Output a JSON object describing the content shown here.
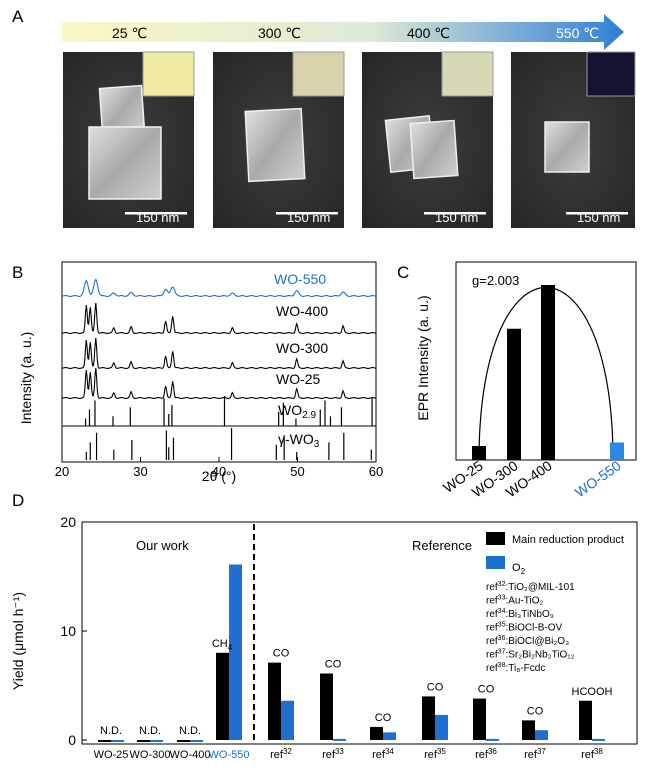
{
  "colors": {
    "black": "#000000",
    "blue": "#1f6fd1",
    "light_blue": "#2a88e6",
    "sem_bg": "#333333",
    "gradient_start": "#fbf7c7",
    "gradient_end": "#2f7fd6"
  },
  "panel_a": {
    "label": "A",
    "temperatures": [
      "25 ℃",
      "300 ℃",
      "400 ℃",
      "550 ℃"
    ],
    "scale_bar": "150 nm",
    "inset_colors": [
      "#efe9a2",
      "#d8d3ad",
      "#d7d8b6",
      "#141430"
    ]
  },
  "panel_b": {
    "label": "B",
    "ylabel": "Intensity (a. u.)",
    "xlabel": "2θ (°)",
    "xticks": [
      "20",
      "30",
      "40",
      "50",
      "60"
    ],
    "trace_labels": [
      "WO-550",
      "WO-400",
      "WO-300",
      "WO-25"
    ],
    "reference_labels": [
      "WO2.9",
      "γ-WO3"
    ]
  },
  "panel_c": {
    "label": "C",
    "ylabel": "EPR Intensity (a. u.)",
    "annotation": "g=2.003",
    "categories": [
      "WO-25",
      "WO-300",
      "WO-400",
      "WO-550"
    ],
    "values": [
      0.08,
      0.75,
      1.0,
      0.1
    ]
  },
  "panel_d": {
    "label": "D",
    "ylabel": "Yield (μmol h⁻¹)",
    "yticks": [
      "0",
      "10",
      "20"
    ],
    "section_left": "Our work",
    "section_right": "Reference",
    "legend": [
      "Main reduction product",
      "O2"
    ],
    "refs": [
      {
        "sup": "32",
        "text": ":TiO₂@MIL-101"
      },
      {
        "sup": "33",
        "text": ":Au-TiO₂"
      },
      {
        "sup": "34",
        "text": ":Bi₃TiNbO₉"
      },
      {
        "sup": "35",
        "text": ":BiOCl-B-OV"
      },
      {
        "sup": "36",
        "text": ":BiOCl@Bi₂O₃"
      },
      {
        "sup": "37",
        "text": ":Sr₂Bi₂Nb₂TiO₁₂"
      },
      {
        "sup": "38",
        "text": ":Ti₈-Fcdc"
      }
    ]
  },
  "chart_data": [
    {
      "type": "line",
      "panel": "B",
      "xlabel": "2θ (°)",
      "ylabel": "Intensity (a. u.)",
      "xlim": [
        20,
        60
      ],
      "series": [
        {
          "name": "WO-550",
          "peaks": [
            23.1,
            24.3,
            26.6,
            28.8,
            33.2,
            34.1,
            41.7,
            49.9,
            55.8
          ]
        },
        {
          "name": "WO-400",
          "peaks": [
            23.1,
            23.6,
            24.3,
            26.6,
            28.8,
            33.2,
            34.1,
            41.7,
            49.9,
            55.8
          ]
        },
        {
          "name": "WO-300",
          "peaks": [
            23.1,
            23.6,
            24.3,
            26.6,
            28.8,
            33.2,
            34.1,
            41.7,
            49.9,
            55.8
          ]
        },
        {
          "name": "WO-25",
          "peaks": [
            23.1,
            23.6,
            24.3,
            26.6,
            28.8,
            33.2,
            34.1,
            41.7,
            49.9,
            55.8
          ]
        }
      ],
      "reference_ticks": [
        {
          "name": "WO2.9",
          "x": [
            23.0,
            23.5,
            24.2,
            26.5,
            28.7,
            33.0,
            33.6,
            34.0,
            40.7,
            47.6,
            48.2,
            49.8,
            52.9,
            53.5,
            54.2,
            55.6,
            59.5
          ]
        },
        {
          "name": "γ-WO3",
          "x": [
            23.1,
            23.6,
            24.4,
            26.6,
            28.9,
            33.3,
            33.6,
            34.2,
            41.6,
            47.3,
            48.3,
            49.9,
            54.0,
            55.9,
            59.4
          ]
        }
      ]
    },
    {
      "type": "bar",
      "panel": "C",
      "ylabel": "EPR Intensity (a. u.)",
      "categories": [
        "WO-25",
        "WO-300",
        "WO-400",
        "WO-550"
      ],
      "values": [
        0.08,
        0.75,
        1.0,
        0.1
      ]
    },
    {
      "type": "bar",
      "panel": "D",
      "ylabel": "Yield (μmol h⁻¹)",
      "ylim": [
        0,
        20
      ],
      "categories": [
        "WO-25",
        "WO-300",
        "WO-400",
        "WO-550",
        "ref32",
        "ref33",
        "ref34",
        "ref35",
        "ref36",
        "ref37",
        "ref38"
      ],
      "series": [
        {
          "name": "Main reduction product",
          "values": [
            0,
            0,
            0,
            8.0,
            7.1,
            6.1,
            1.2,
            4.0,
            3.8,
            1.8,
            3.6
          ]
        },
        {
          "name": "O2",
          "values": [
            0,
            0,
            0,
            16.1,
            3.6,
            0.1,
            0.7,
            2.3,
            0.1,
            0.9,
            0.1
          ]
        }
      ],
      "bar_labels": [
        "N.D.",
        "N.D.",
        "N.D.",
        "CH4",
        "CO",
        "CO",
        "CO",
        "CO",
        "CO",
        "CO",
        "HCOOH"
      ]
    }
  ]
}
